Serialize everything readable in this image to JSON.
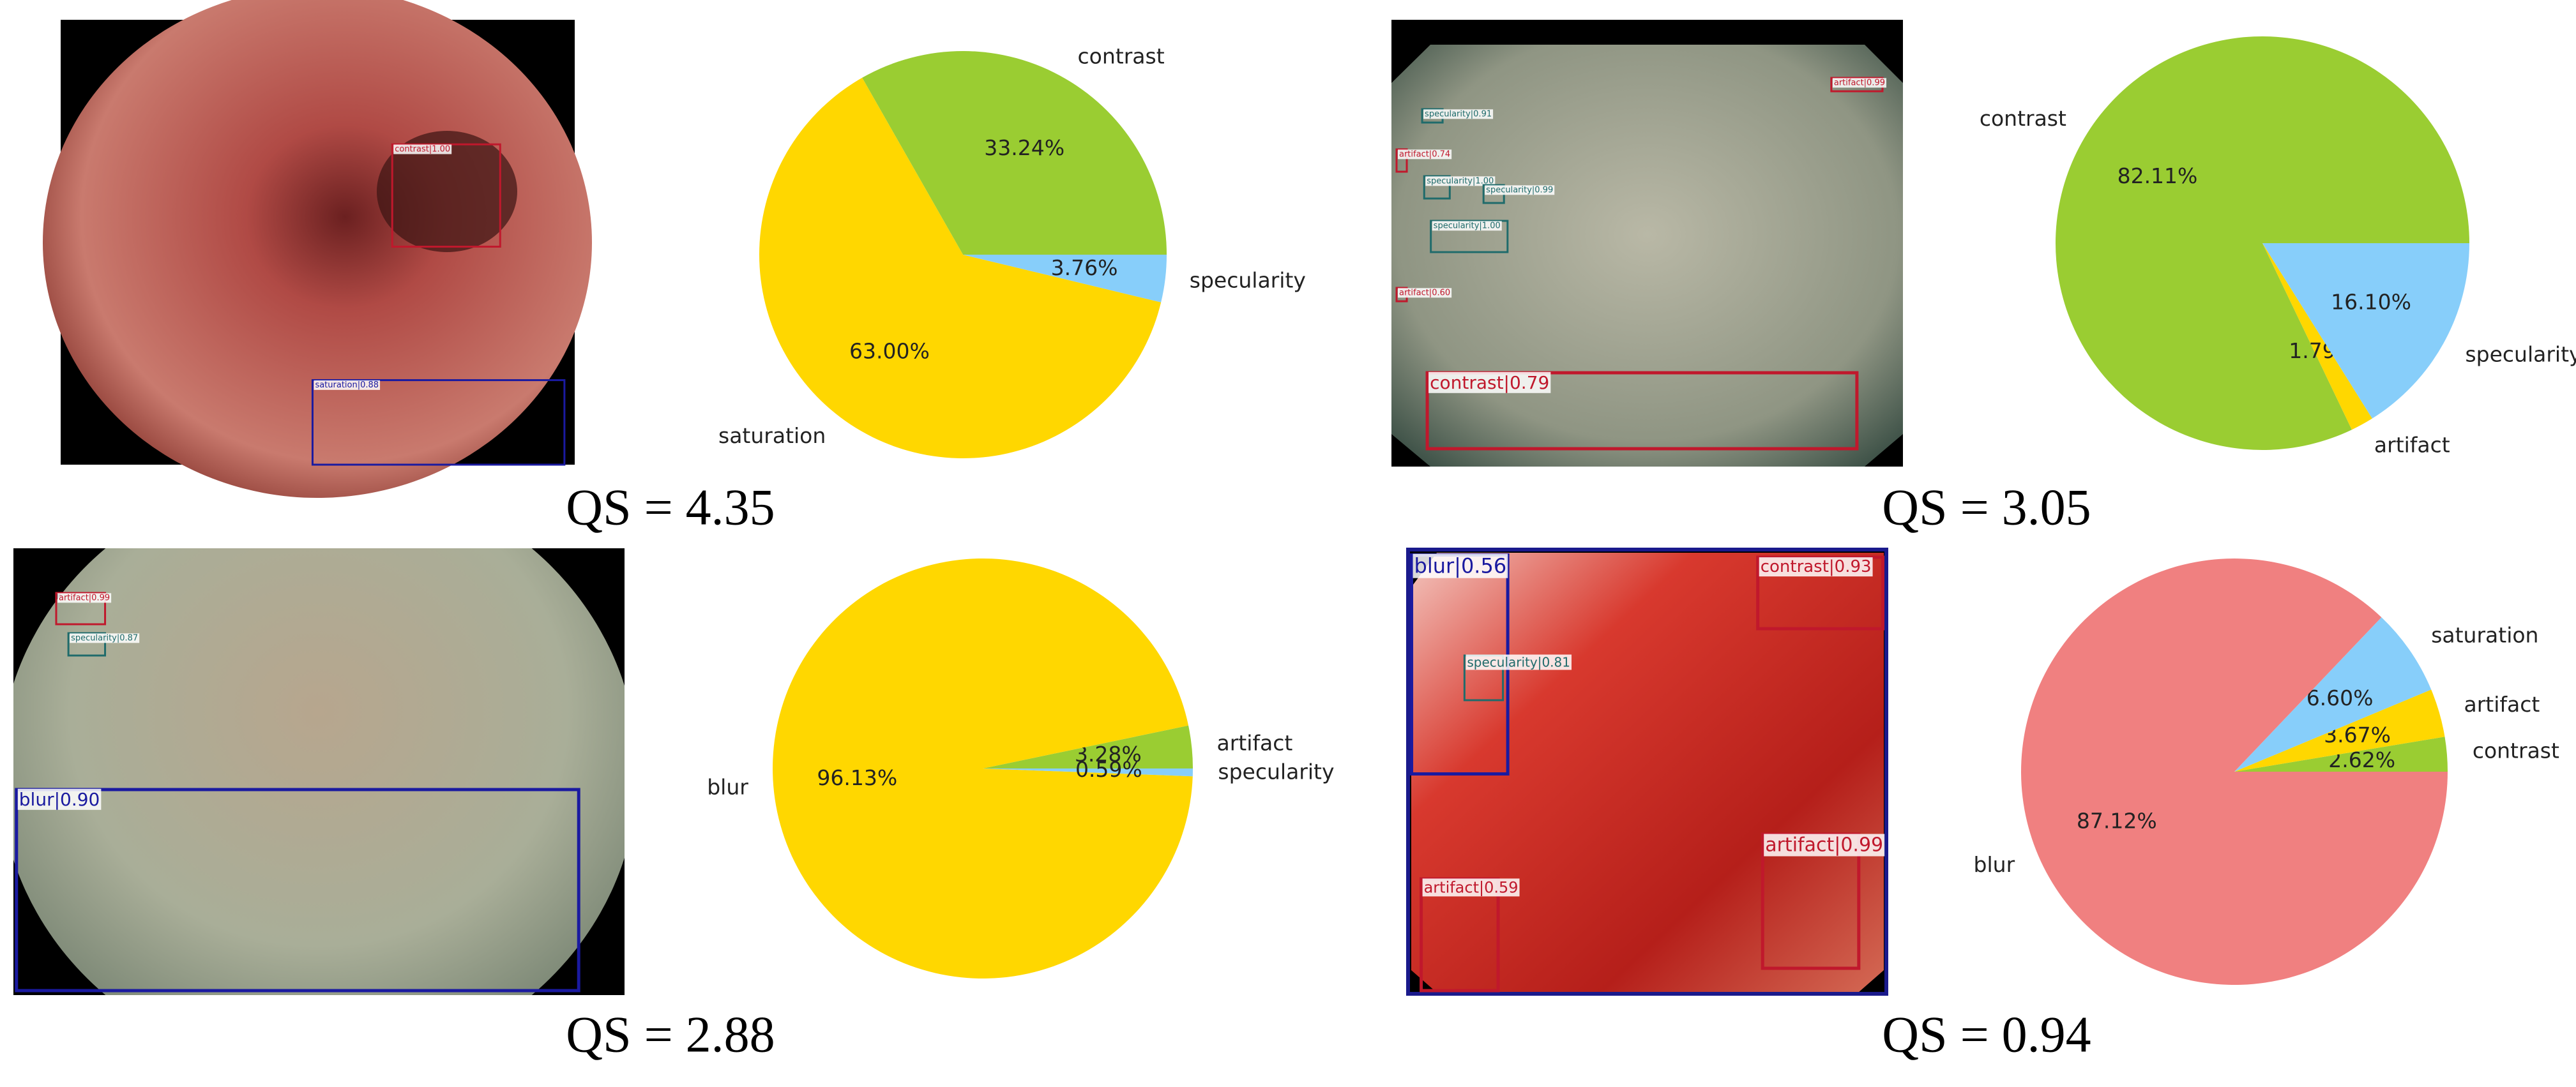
{
  "chart_data": [
    {
      "type": "pie",
      "categories": [
        "contrast",
        "saturation",
        "specularity"
      ],
      "values": [
        33.24,
        63.0,
        3.76
      ],
      "value_labels": [
        "33.24%",
        "63.00%",
        "3.76%"
      ],
      "colors": [
        "#9acd32",
        "#ffd700",
        "#87cefa"
      ]
    },
    {
      "type": "pie",
      "categories": [
        "contrast",
        "artifact",
        "specularity"
      ],
      "values": [
        82.11,
        1.79,
        16.1
      ],
      "value_labels": [
        "82.11%",
        "1.79%",
        "16.10%"
      ],
      "colors": [
        "#9acd32",
        "#ffd700",
        "#87cefa"
      ]
    },
    {
      "type": "pie",
      "categories": [
        "artifact",
        "blur",
        "specularity"
      ],
      "values": [
        3.28,
        96.13,
        0.59
      ],
      "value_labels": [
        "3.28%",
        "96.13%",
        "0.59%"
      ],
      "colors": [
        "#9acd32",
        "#ffd700",
        "#87cefa"
      ]
    },
    {
      "type": "pie",
      "categories": [
        "contrast",
        "artifact",
        "saturation",
        "blur"
      ],
      "values": [
        2.62,
        3.67,
        6.6,
        87.12
      ],
      "value_labels": [
        "2.62%",
        "3.67%",
        "6.60%",
        "87.12%"
      ],
      "colors": [
        "#9acd32",
        "#ffd700",
        "#87cefa",
        "#f08080"
      ]
    }
  ],
  "panels": [
    {
      "qs": "QS = 4.35",
      "boxes": [
        "contrast|1.00",
        "saturation|0.88"
      ]
    },
    {
      "qs": "QS = 3.05",
      "boxes": [
        "contrast|0.79",
        "specularity|0.91",
        "artifact|0.74",
        "specularity|1.00",
        "specularity|0.99",
        "specularity|1.00",
        "artifact|0.60",
        "artifact|0.99"
      ]
    },
    {
      "qs": "QS = 2.88",
      "boxes": [
        "blur|0.90",
        "artifact|0.99",
        "specularity|0.87"
      ]
    },
    {
      "qs": "QS = 0.94",
      "boxes": [
        "blur|0.56",
        "contrast|0.93",
        "specularity|0.81",
        "artifact|0.99",
        "artifact|0.59"
      ]
    }
  ]
}
